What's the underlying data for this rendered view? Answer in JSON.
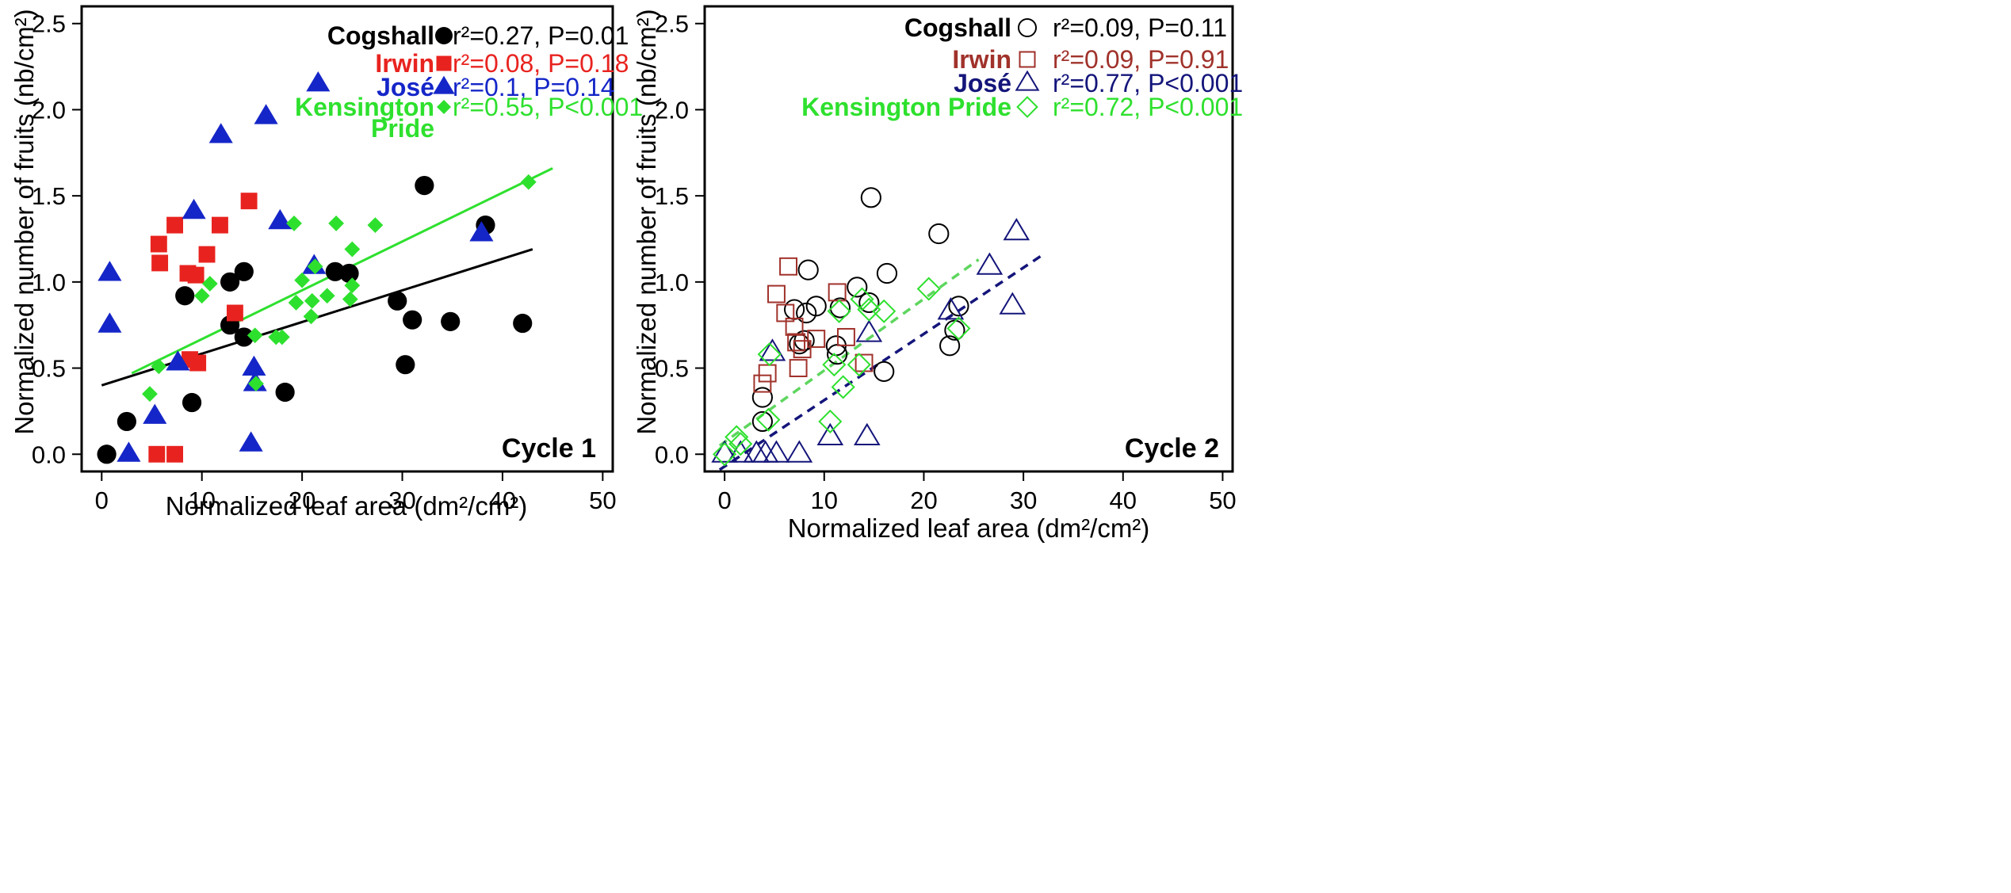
{
  "colors": {
    "Cogshall": "#000000",
    "Irwin": "#e8231f",
    "Irwin_open": "#a0322b",
    "Jose": "#1526c8",
    "Jose_open": "#14157a",
    "Kensington": "#2ee02e",
    "Kensington_line": "#5ed65e"
  },
  "chart_data": [
    {
      "type": "scatter",
      "panel": "Cycle 1",
      "cycle_label": "Cycle 1",
      "xlabel": "Normalized leaf area (dm²/cm²)",
      "ylabel": "Normalized number of fruits (nb/cm²)",
      "xlim": [
        -2,
        51
      ],
      "ylim": [
        -0.1,
        2.6
      ],
      "xticks": [
        "0",
        "10",
        "20",
        "30",
        "40",
        "50"
      ],
      "yticks": [
        "0.0",
        "0.5",
        "1.0",
        "1.5",
        "2.0",
        "2.5"
      ],
      "marker_fill": "filled",
      "series": [
        {
          "key": "Cogshall",
          "name": "Cogshall",
          "marker": "circle",
          "stat": "r²=0.27, P=0.01",
          "points": [
            [
              0.5,
              0.0
            ],
            [
              2.5,
              0.19
            ],
            [
              8.3,
              0.92
            ],
            [
              9,
              0.3
            ],
            [
              12.8,
              1.0
            ],
            [
              12.8,
              0.75
            ],
            [
              14.2,
              1.06
            ],
            [
              14.2,
              0.68
            ],
            [
              18.3,
              0.36
            ],
            [
              23.3,
              1.06
            ],
            [
              24.7,
              1.05
            ],
            [
              29.5,
              0.89
            ],
            [
              30.3,
              0.52
            ],
            [
              31,
              0.78
            ],
            [
              32.2,
              1.56
            ],
            [
              34.8,
              0.77
            ],
            [
              38.3,
              1.33
            ],
            [
              42,
              0.76
            ]
          ],
          "fit": [
            [
              0,
              0.4
            ],
            [
              43,
              1.19
            ]
          ],
          "fit_style": "solid"
        },
        {
          "key": "Irwin",
          "name": "Irwin",
          "marker": "square",
          "stat": "r²=0.08, P=0.18",
          "points": [
            [
              5.5,
              0.0
            ],
            [
              7.3,
              0.0
            ],
            [
              5.7,
              1.22
            ],
            [
              5.8,
              1.11
            ],
            [
              7.3,
              1.33
            ],
            [
              8.6,
              1.05
            ],
            [
              9.4,
              1.04
            ],
            [
              10.5,
              1.16
            ],
            [
              11.8,
              1.33
            ],
            [
              13.3,
              0.82
            ],
            [
              14.7,
              1.47
            ],
            [
              8.8,
              0.55
            ],
            [
              9.6,
              0.53
            ]
          ],
          "fit": null
        },
        {
          "key": "Jose",
          "name": "José",
          "marker": "triangle",
          "stat": "r²=0.1, P=0.14",
          "points": [
            [
              0.8,
              1.05
            ],
            [
              0.8,
              0.75
            ],
            [
              2.7,
              0.0
            ],
            [
              5.3,
              0.22
            ],
            [
              7.6,
              0.53
            ],
            [
              9.2,
              1.41
            ],
            [
              11.9,
              1.85
            ],
            [
              14.9,
              0.06
            ],
            [
              15.2,
              0.5
            ],
            [
              15.3,
              0.41
            ],
            [
              16.4,
              1.96
            ],
            [
              17.8,
              1.35
            ],
            [
              21.2,
              1.09
            ],
            [
              21.6,
              2.15
            ],
            [
              37.9,
              1.28
            ]
          ],
          "fit": null
        },
        {
          "key": "Kensington",
          "name": "Kensington Pride",
          "name_lines": [
            "Kensington",
            "Pride"
          ],
          "marker": "diamond",
          "stat": "r²=0.55, P<0.001",
          "points": [
            [
              4.8,
              0.35
            ],
            [
              5.7,
              0.51
            ],
            [
              10,
              0.92
            ],
            [
              10.8,
              0.99
            ],
            [
              15.3,
              0.69
            ],
            [
              15.4,
              0.41
            ],
            [
              17.4,
              0.68
            ],
            [
              18,
              0.68
            ],
            [
              19.2,
              1.34
            ],
            [
              19.4,
              0.88
            ],
            [
              20,
              1.01
            ],
            [
              20.9,
              0.8
            ],
            [
              21,
              0.89
            ],
            [
              21.3,
              1.09
            ],
            [
              22.5,
              0.92
            ],
            [
              23.4,
              1.34
            ],
            [
              24.8,
              0.9
            ],
            [
              25,
              0.98
            ],
            [
              25,
              1.19
            ],
            [
              27.3,
              1.33
            ],
            [
              42.6,
              1.58
            ]
          ],
          "fit": [
            [
              3,
              0.47
            ],
            [
              45,
              1.66
            ]
          ],
          "fit_style": "solid"
        }
      ]
    },
    {
      "type": "scatter",
      "panel": "Cycle 2",
      "cycle_label": "Cycle 2",
      "xlabel": "Normalized leaf area (dm²/cm²)",
      "ylabel": "Normalized number of fruits (nb/cm²)",
      "xlim": [
        -2,
        51
      ],
      "ylim": [
        -0.1,
        2.6
      ],
      "xticks": [
        "0",
        "10",
        "20",
        "30",
        "40",
        "50"
      ],
      "yticks": [
        "0.0",
        "0.5",
        "1.0",
        "1.5",
        "2.0",
        "2.5"
      ],
      "marker_fill": "open",
      "series": [
        {
          "key": "Cogshall",
          "name": "Cogshall",
          "marker": "circle",
          "stat": "r²=0.09, P=0.11",
          "points": [
            [
              3.8,
              0.33
            ],
            [
              3.8,
              0.19
            ],
            [
              7,
              0.84
            ],
            [
              7.5,
              0.64
            ],
            [
              8,
              0.66
            ],
            [
              8.2,
              0.82
            ],
            [
              8.4,
              1.07
            ],
            [
              9.2,
              0.86
            ],
            [
              11.2,
              0.63
            ],
            [
              11.3,
              0.58
            ],
            [
              11.6,
              0.85
            ],
            [
              13.3,
              0.97
            ],
            [
              14.5,
              0.88
            ],
            [
              14.7,
              1.49
            ],
            [
              16,
              0.48
            ],
            [
              16.3,
              1.05
            ],
            [
              21.5,
              1.28
            ],
            [
              22.6,
              0.63
            ],
            [
              23.1,
              0.72
            ],
            [
              23.5,
              0.86
            ]
          ],
          "fit": null
        },
        {
          "key": "Irwin",
          "name": "Irwin",
          "marker": "square",
          "stat": "r²=0.09, P=0.91",
          "points": [
            [
              3.8,
              0.41
            ],
            [
              4.3,
              0.47
            ],
            [
              5.2,
              0.93
            ],
            [
              6.1,
              0.82
            ],
            [
              6.4,
              1.09
            ],
            [
              7,
              0.74
            ],
            [
              7.2,
              0.65
            ],
            [
              7.4,
              0.5
            ],
            [
              7.8,
              0.61
            ],
            [
              9.2,
              0.67
            ],
            [
              11.3,
              0.94
            ],
            [
              12.2,
              0.68
            ],
            [
              14,
              0.53
            ]
          ],
          "fit": null
        },
        {
          "key": "Jose",
          "name": "José",
          "marker": "triangle",
          "stat": "r²=0.77, P<0.001",
          "points": [
            [
              0,
              0.0
            ],
            [
              1.6,
              0.0
            ],
            [
              3.2,
              0.0
            ],
            [
              4.1,
              0.0
            ],
            [
              4.8,
              0.59
            ],
            [
              5.2,
              0.0
            ],
            [
              7.5,
              0.0
            ],
            [
              10.6,
              0.1
            ],
            [
              14.3,
              0.1
            ],
            [
              14.5,
              0.7
            ],
            [
              22.7,
              0.83
            ],
            [
              26.6,
              1.09
            ],
            [
              28.9,
              0.86
            ],
            [
              29.3,
              1.29
            ]
          ],
          "fit": [
            [
              -0.5,
              -0.09
            ],
            [
              32,
              1.16
            ]
          ],
          "fit_style": "dashed"
        },
        {
          "key": "Kensington",
          "name": "Kensington Pride",
          "marker": "diamond",
          "stat": "r²=0.72, P<0.001",
          "points": [
            [
              0,
              0.0
            ],
            [
              1.2,
              0.1
            ],
            [
              1.6,
              0.06
            ],
            [
              4.4,
              0.2
            ],
            [
              4.5,
              0.58
            ],
            [
              10.6,
              0.19
            ],
            [
              11,
              0.52
            ],
            [
              11.5,
              0.83
            ],
            [
              11.9,
              0.39
            ],
            [
              13.5,
              0.52
            ],
            [
              13.8,
              0.9
            ],
            [
              14.5,
              0.84
            ],
            [
              16,
              0.83
            ],
            [
              20.5,
              0.96
            ],
            [
              23.5,
              0.73
            ]
          ],
          "fit": [
            [
              -0.5,
              0.05
            ],
            [
              25.5,
              1.13
            ]
          ],
          "fit_style": "dashed"
        }
      ]
    }
  ]
}
